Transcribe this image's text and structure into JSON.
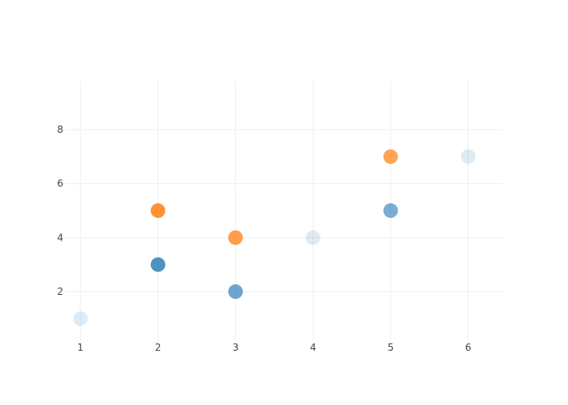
{
  "chart_data": {
    "type": "scatter",
    "title": "",
    "xlabel": "",
    "ylabel": "",
    "xlim": [
      0.8,
      6.45
    ],
    "ylim": [
      0.2,
      9.8
    ],
    "x_ticks": [
      1,
      2,
      3,
      4,
      5,
      6
    ],
    "y_ticks": [
      2,
      4,
      6,
      8
    ],
    "grid": true,
    "legend": "none",
    "series": [
      {
        "color": "#1f77b4",
        "points": [
          {
            "x": 1,
            "y": 1,
            "opacity": 0.15
          },
          {
            "x": 2,
            "y": 3,
            "opacity": 0.8
          },
          {
            "x": 3,
            "y": 2,
            "opacity": 0.65
          },
          {
            "x": 4,
            "y": 4,
            "opacity": 0.15
          },
          {
            "x": 5,
            "y": 5,
            "opacity": 0.6
          },
          {
            "x": 6,
            "y": 7,
            "opacity": 0.15
          }
        ]
      },
      {
        "color": "#ff7f0e",
        "points": [
          {
            "x": 2,
            "y": 5,
            "opacity": 0.85
          },
          {
            "x": 3,
            "y": 4,
            "opacity": 0.75
          },
          {
            "x": 5,
            "y": 7,
            "opacity": 0.7
          }
        ]
      }
    ]
  }
}
